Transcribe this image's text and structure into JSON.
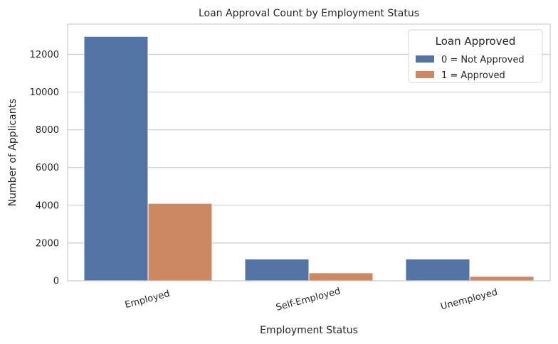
{
  "chart_data": {
    "type": "bar",
    "title": "Loan Approval Count by Employment Status",
    "xlabel": "Employment Status",
    "ylabel": "Number of Applicants",
    "categories": [
      "Employed",
      "Self-Employed",
      "Unemployed"
    ],
    "series": [
      {
        "name": "0 = Not Approved",
        "values": [
          12950,
          1150,
          1150
        ]
      },
      {
        "name": "1 = Approved",
        "values": [
          4100,
          420,
          230
        ]
      }
    ],
    "ylim": [
      0,
      13600
    ],
    "yticks": [
      0,
      2000,
      4000,
      6000,
      8000,
      10000,
      12000
    ],
    "grid": "horizontal",
    "legend": {
      "title": "Loan Approved",
      "placement": "top-right"
    },
    "colors": {
      "series": [
        "#5574a6",
        "#cc8863"
      ],
      "grid": "#cccccc",
      "frame": "#cccccc"
    }
  }
}
